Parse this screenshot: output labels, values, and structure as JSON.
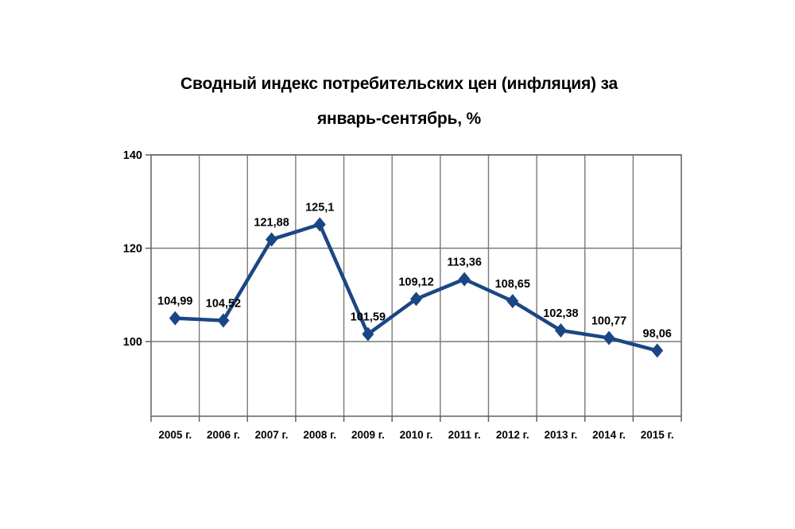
{
  "chart_data": {
    "type": "line",
    "title": "Сводный индекс потребительских цен (инфляция) за январь-сентябрь, %",
    "title_lines": [
      "Сводный индекс потребительских цен (инфляция) за",
      "январь-сентябрь, %"
    ],
    "categories": [
      "2005 г.",
      "2006 г.",
      "2007 г.",
      "2008 г.",
      "2009 г.",
      "2010 г.",
      "2011 г.",
      "2012 г.",
      "2013 г.",
      "2014 г.",
      "2015 г."
    ],
    "values": [
      104.99,
      104.52,
      121.88,
      125.1,
      101.59,
      109.12,
      113.36,
      108.65,
      102.38,
      100.77,
      98.06
    ],
    "point_labels": [
      "104,99",
      "104,52",
      "121,88",
      "125,1",
      "101,59",
      "109,12",
      "113,36",
      "108,65",
      "102,38",
      "100,77",
      "98,06"
    ],
    "xlabel": "",
    "ylabel": "",
    "yticks": [
      100,
      120,
      140
    ],
    "ylim": [
      84,
      140
    ],
    "grid": true,
    "legend": "none",
    "marker": "diamond",
    "colors": {
      "line": "#1b4685",
      "marker": "#1b4685",
      "grid": "#7a7a7a",
      "axis": "#606060",
      "text": "#000000",
      "background": "#ffffff"
    }
  }
}
